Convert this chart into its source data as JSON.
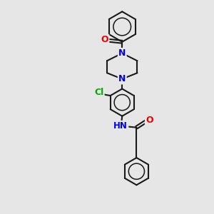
{
  "bg_color": "#e6e6e6",
  "bond_color": "#1a1a1a",
  "N_color": "#0000ee",
  "O_color": "#ee0000",
  "Cl_color": "#00aa00",
  "H_color": "#555555",
  "bond_width": 1.5,
  "fig_width": 3.0,
  "fig_height": 3.0,
  "dpi": 100,
  "xlim": [
    0,
    10
  ],
  "ylim": [
    0,
    14
  ]
}
